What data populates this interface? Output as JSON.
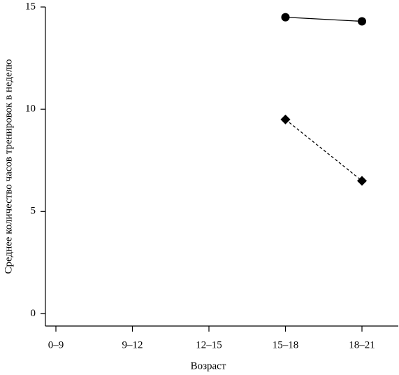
{
  "chart_data": {
    "type": "line",
    "xlabel": "Возраст",
    "ylabel": "Среднее количество часов тренировок в неделю",
    "categories": [
      "0–9",
      "9–12",
      "12–15",
      "15–18",
      "18–21"
    ],
    "series": [
      {
        "color": "#000000",
        "marker": "circle",
        "dashed": false,
        "values": [
          null,
          null,
          null,
          14.5,
          14.3
        ]
      },
      {
        "color": "#000000",
        "marker": "diamond",
        "dashed": true,
        "values": [
          null,
          null,
          null,
          9.5,
          6.5
        ]
      }
    ],
    "ylim": [
      -0.6,
      15
    ],
    "yticks": [
      0,
      5,
      10,
      15
    ],
    "grid": false
  }
}
